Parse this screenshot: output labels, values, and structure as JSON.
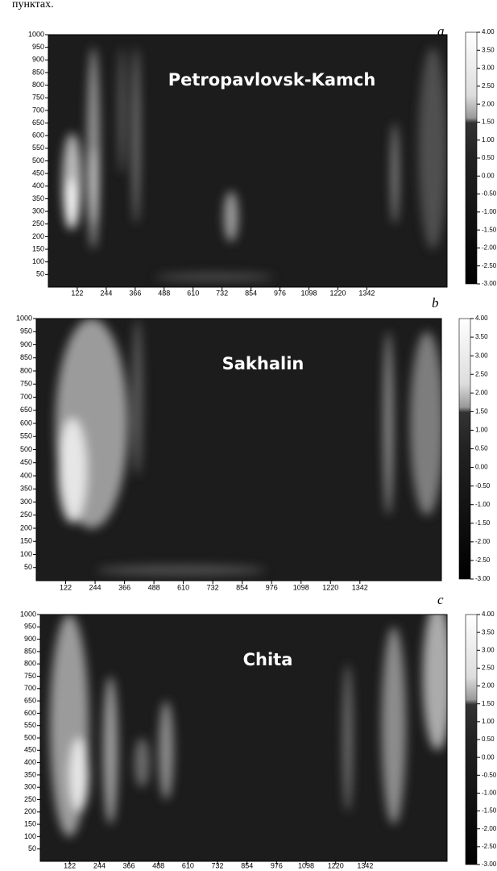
{
  "caption": "пунктах.",
  "chart_data": [
    {
      "type": "heatmap",
      "panel_label": "a",
      "title": "Petropavlovsk-Kamch",
      "xlim": [
        0,
        1680
      ],
      "xticks": [
        122,
        244,
        366,
        488,
        610,
        732,
        854,
        976,
        1098,
        1220,
        1342
      ],
      "ylim": [
        0,
        1000
      ],
      "yticks": [
        50,
        100,
        150,
        200,
        250,
        300,
        350,
        400,
        450,
        500,
        550,
        600,
        650,
        700,
        750,
        800,
        850,
        900,
        950,
        1000
      ],
      "colorbar": {
        "lim": [
          -3,
          4
        ],
        "ticks": [
          {
            "value": 4,
            "label": "4.00"
          },
          {
            "value": 3.5,
            "label": "3.50"
          },
          {
            "value": 3,
            "label": "3.00"
          },
          {
            "value": 2.5,
            "label": "2.50"
          },
          {
            "value": 2,
            "label": "2.00"
          },
          {
            "value": 1.5,
            "label": "1.50"
          },
          {
            "value": 1,
            "label": "1.00"
          },
          {
            "value": 0.5,
            "label": "0.50"
          },
          {
            "value": 0,
            "label": "0.00"
          },
          {
            "value": -0.5,
            "label": "-0.50"
          },
          {
            "value": -1,
            "label": "-1.00"
          },
          {
            "value": -1.5,
            "label": "-1.50"
          },
          {
            "value": -2,
            "label": "-2.00"
          },
          {
            "value": -2.5,
            "label": "-2.50"
          },
          {
            "value": -3,
            "label": "-3.00"
          }
        ]
      }
    },
    {
      "type": "heatmap",
      "panel_label": "b",
      "title": "Sakhalin",
      "xlim": [
        0,
        1680
      ],
      "xticks": [
        122,
        244,
        366,
        488,
        610,
        732,
        854,
        976,
        1098,
        1220,
        1342
      ],
      "ylim": [
        0,
        1000
      ],
      "yticks": [
        50,
        100,
        150,
        200,
        250,
        300,
        350,
        400,
        450,
        500,
        550,
        600,
        650,
        700,
        750,
        800,
        850,
        900,
        950,
        1000
      ],
      "colorbar": {
        "lim": [
          -3,
          4
        ],
        "ticks": [
          {
            "value": 4,
            "label": "4.00"
          },
          {
            "value": 3.5,
            "label": "3.50"
          },
          {
            "value": 3,
            "label": "3.00"
          },
          {
            "value": 2.5,
            "label": "2.50"
          },
          {
            "value": 2,
            "label": "2.00"
          },
          {
            "value": 1.5,
            "label": "1.50"
          },
          {
            "value": 1,
            "label": "1.00"
          },
          {
            "value": 0.5,
            "label": "0.50"
          },
          {
            "value": 0,
            "label": "0.00"
          },
          {
            "value": -0.5,
            "label": "-0.50"
          },
          {
            "value": -1,
            "label": "-1.00"
          },
          {
            "value": -1.5,
            "label": "-1.50"
          },
          {
            "value": -2,
            "label": "-2.00"
          },
          {
            "value": -2.5,
            "label": "-2.50"
          },
          {
            "value": -3,
            "label": "-3.00"
          }
        ]
      }
    },
    {
      "type": "heatmap",
      "panel_label": "c",
      "title": "Chita",
      "xlim": [
        0,
        1680
      ],
      "xticks": [
        122,
        244,
        366,
        488,
        610,
        732,
        854,
        976,
        1098,
        1220,
        1342
      ],
      "ylim": [
        0,
        1000
      ],
      "yticks": [
        50,
        100,
        150,
        200,
        250,
        300,
        350,
        400,
        450,
        500,
        550,
        600,
        650,
        700,
        750,
        800,
        850,
        900,
        950,
        1000
      ],
      "colorbar": {
        "lim": [
          -3,
          4
        ],
        "ticks": [
          {
            "value": 4,
            "label": "4.00"
          },
          {
            "value": 3.5,
            "label": "3.50"
          },
          {
            "value": 3,
            "label": "3.00"
          },
          {
            "value": 2.5,
            "label": "2.50"
          },
          {
            "value": 2,
            "label": "2.00"
          },
          {
            "value": 1.5,
            "label": "1.50"
          },
          {
            "value": 1,
            "label": "1.00"
          },
          {
            "value": 0.5,
            "label": "0.50"
          },
          {
            "value": 0,
            "label": "0.00"
          },
          {
            "value": -0.5,
            "label": "-0.50"
          },
          {
            "value": -1,
            "label": "-1.00"
          },
          {
            "value": -1.5,
            "label": "-1.50"
          },
          {
            "value": -2,
            "label": "-2.00"
          },
          {
            "value": -2.5,
            "label": "-2.50"
          },
          {
            "value": -3,
            "label": "-3.00"
          }
        ]
      }
    }
  ]
}
